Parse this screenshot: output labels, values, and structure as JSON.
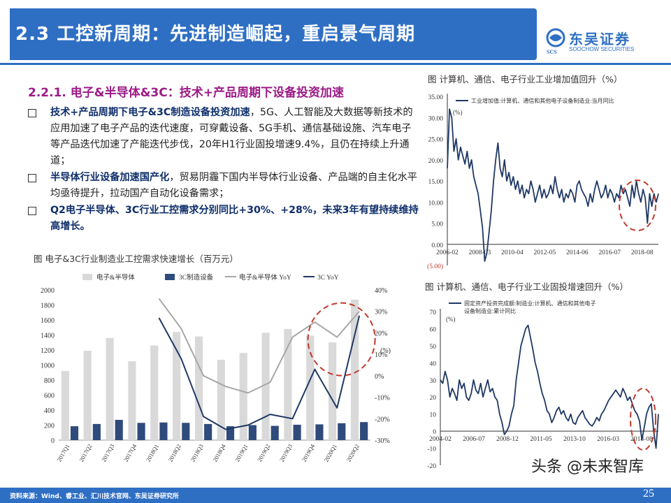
{
  "header": {
    "title": "2.3 工控新周期：先进制造崛起，重启景气周期",
    "logo_cn": "东吴证券",
    "logo_en": "SOOCHOW SECURITIES",
    "logo_mark": "SCS"
  },
  "content": {
    "subhead": "2.2.1. 电子&半导体&3C：技术+产品周期下设备投资加速",
    "bullets": [
      {
        "bold": "技术+产品周期下电子&3C制造设备投资加速",
        "text": "，5G、人工智能及大数据等新技术的应用加速了电子产品的迭代速度，可穿戴设备、5G手机、通信基础设施、汽车电子等产品迭代加速了产能迭代步伐，20年H1行业固投增速9.4%，且仍在持续上升通道；"
      },
      {
        "bold": "半导体行业设备加速国产化",
        "text": "，贸易阴霾下国内半导体行业设备、产品端的自主化水平均亟待提升，拉动国产自动化设备需求；"
      },
      {
        "bold": "Q2电子半导体、3C行业工控需求分别同比+30%、+28%，未来3年有望持续维持高增长。",
        "text": ""
      }
    ]
  },
  "colors": {
    "brand_blue": "#2e6fc4",
    "bar_grey": "#d9d9d9",
    "bar_navy": "#2f4b7c",
    "line_grey": "#a6a6a6",
    "line_navy": "#1f3864",
    "highlight_red": "#c0392b",
    "subhead_purple": "#9c1a86"
  },
  "chart_data": [
    {
      "type": "bar",
      "title": "图  电子&3C行业制造业工控需求快速增长（百万元）",
      "categories": [
        "2017Q1",
        "2017Q2",
        "2017Q3",
        "2017Q4",
        "2018Q1",
        "2018Q2",
        "2018Q3",
        "2018Q4",
        "2019Q1",
        "2019Q2",
        "2019Q3",
        "2019Q4",
        "2020Q1",
        "2020Q2"
      ],
      "series": [
        {
          "name": "电子&半导体",
          "kind": "bar",
          "axis": "left",
          "values": [
            920,
            1190,
            1360,
            1050,
            1260,
            1440,
            1380,
            1070,
            1160,
            1430,
            1480,
            1390,
            1300,
            1870
          ]
        },
        {
          "name": "3C制造设备",
          "kind": "bar",
          "axis": "left",
          "values": [
            185,
            215,
            270,
            230,
            235,
            230,
            215,
            185,
            200,
            190,
            205,
            210,
            225,
            240
          ]
        },
        {
          "name": "电子&半导体 YoY",
          "kind": "line",
          "axis": "right",
          "values": [
            null,
            null,
            null,
            null,
            36,
            22,
            0,
            -5,
            -8,
            -3,
            18,
            25,
            18,
            30
          ]
        },
        {
          "name": "3C YoY",
          "kind": "line",
          "axis": "right",
          "values": [
            null,
            null,
            null,
            null,
            27,
            8,
            -19,
            -25,
            -23,
            -18,
            -20,
            3,
            -15,
            28
          ]
        }
      ],
      "ylim_left": [
        0,
        2000
      ],
      "yticks_left": [
        "0",
        "200",
        "400",
        "600",
        "800",
        "1000",
        "1200",
        "1400",
        "1600",
        "1800",
        "2000"
      ],
      "ylim_right": [
        -30,
        40
      ],
      "yticks_right": [
        "-30%",
        "-20%",
        "-10%",
        "0%",
        "10%",
        "20%",
        "30%",
        "40%"
      ],
      "right_unit": "(%)",
      "legend_position": "top"
    },
    {
      "type": "line",
      "title": "图  计算机、通信、电子行业工业增加值回升（%）",
      "series_name": "工业增加值:计算机、通信和其他电子设备制造业:当月同比",
      "unit": "(%)",
      "xticks": [
        "2006-02",
        "2008-03",
        "2010-04",
        "2012-05",
        "2014-06",
        "2016-07",
        "2018-08"
      ],
      "yticks": [
        "(5.00)",
        "0.00",
        "5.00",
        "10.00",
        "15.00",
        "20.00",
        "25.00",
        "30.00",
        "35.00"
      ],
      "ylim": [
        -5,
        35
      ],
      "x_range": [
        "2006-02",
        "2020-08"
      ],
      "values": [
        18,
        32,
        30,
        22,
        25,
        20,
        23,
        21,
        19,
        22,
        18,
        20,
        16,
        14,
        12,
        8,
        4,
        -4,
        -2,
        3,
        8,
        15,
        20,
        24,
        18,
        16,
        20,
        15,
        17,
        14,
        16,
        13,
        15,
        12,
        14,
        11,
        13,
        12,
        15,
        13,
        10,
        12,
        14,
        11,
        13,
        11,
        12,
        14,
        12,
        16,
        13,
        11,
        13,
        10,
        12,
        11,
        13,
        12,
        10,
        14,
        15,
        13,
        12,
        11,
        9,
        12,
        10,
        13,
        15,
        13,
        11,
        12,
        14,
        11,
        13,
        12,
        10,
        12,
        11,
        14,
        12,
        13,
        11,
        9,
        14,
        11,
        15,
        12,
        10,
        13,
        11,
        5,
        12,
        9,
        12,
        10,
        12
      ]
    },
    {
      "type": "line",
      "title": "图  计算机、通信、电子行业工业固投增速回升（%）",
      "series_name": "固定资产投资完成额:制造业:计算机、通信和其他电子设备制造业:累计同比",
      "unit": "(%)",
      "xticks": [
        "2004-02",
        "2006-07",
        "2008-12",
        "2011-05",
        "2013-10",
        "2016-03",
        "2018-08"
      ],
      "yticks": [
        "-20",
        "-10",
        "0",
        "10",
        "20",
        "30",
        "40",
        "50",
        "60",
        "70"
      ],
      "ylim": [
        -20,
        70
      ],
      "x_range": [
        "2004-02",
        "2020-08"
      ],
      "values": [
        30,
        28,
        35,
        30,
        20,
        25,
        22,
        18,
        30,
        25,
        28,
        20,
        18,
        22,
        30,
        24,
        22,
        28,
        20,
        25,
        30,
        23,
        25,
        20,
        18,
        10,
        5,
        -2,
        0,
        3,
        10,
        15,
        30,
        40,
        50,
        55,
        60,
        62,
        55,
        48,
        40,
        35,
        28,
        22,
        18,
        12,
        10,
        5,
        8,
        12,
        14,
        10,
        12,
        8,
        6,
        10,
        5,
        4,
        8,
        10,
        12,
        8,
        6,
        4,
        3,
        5,
        8,
        6,
        10,
        12,
        15,
        18,
        20,
        22,
        24,
        22,
        20,
        25,
        22,
        18,
        20,
        16,
        12,
        10,
        6,
        -5,
        2,
        10,
        14,
        16,
        0,
        -10,
        10
      ]
    }
  ],
  "footer": {
    "source": "资料来源：Wind、睿工业、汇川技术官网、东吴证券研究所",
    "page_number": "25",
    "watermark": "头条 @未来智库"
  }
}
